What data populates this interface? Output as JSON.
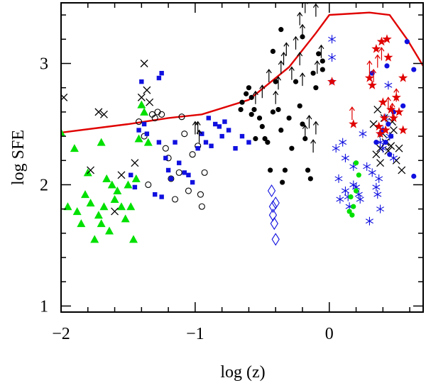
{
  "chart_data": {
    "type": "scatter",
    "title": "",
    "xlabel": "log (z)",
    "ylabel": "log SFE",
    "xlim": [
      -2.0,
      0.7
    ],
    "ylim": [
      0.95,
      3.5
    ],
    "x_ticks": [
      -2,
      -1,
      0
    ],
    "x_tick_labels": [
      "−2",
      "−1",
      "0"
    ],
    "y_ticks": [
      1,
      2,
      3
    ],
    "y_tick_labels": [
      "1",
      "2",
      "3"
    ],
    "grid": false,
    "colors": {
      "red": "#e00000",
      "blue": "#1010e0",
      "green": "#00e000",
      "black": "#000000"
    },
    "series": [
      {
        "name": "model curve",
        "style": "line",
        "color": "#e00000",
        "points": [
          [
            -2.0,
            2.43
          ],
          [
            -1.5,
            2.5
          ],
          [
            -1.2,
            2.55
          ],
          [
            -0.95,
            2.58
          ],
          [
            -0.6,
            2.7
          ],
          [
            -0.3,
            2.97
          ],
          [
            -0.1,
            3.25
          ],
          [
            0.0,
            3.4
          ],
          [
            0.3,
            3.42
          ],
          [
            0.45,
            3.4
          ],
          [
            0.58,
            3.2
          ],
          [
            0.7,
            2.98
          ]
        ]
      },
      {
        "name": "green triangles",
        "marker": "triangle",
        "color": "#00e000",
        "points": [
          [
            -2.0,
            2.43
          ],
          [
            -1.95,
            1.82
          ],
          [
            -1.9,
            2.3
          ],
          [
            -1.88,
            1.78
          ],
          [
            -1.85,
            1.68
          ],
          [
            -1.82,
            1.92
          ],
          [
            -1.8,
            2.1
          ],
          [
            -1.78,
            1.85
          ],
          [
            -1.75,
            1.55
          ],
          [
            -1.72,
            1.75
          ],
          [
            -1.7,
            2.35
          ],
          [
            -1.7,
            1.68
          ],
          [
            -1.68,
            1.82
          ],
          [
            -1.66,
            2.05
          ],
          [
            -1.64,
            1.62
          ],
          [
            -1.62,
            2.0
          ],
          [
            -1.6,
            1.88
          ],
          [
            -1.58,
            1.95
          ],
          [
            -1.55,
            1.82
          ],
          [
            -1.52,
            1.72
          ],
          [
            -1.5,
            2.0
          ],
          [
            -1.48,
            1.82
          ],
          [
            -1.46,
            1.55
          ],
          [
            -1.44,
            2.05
          ],
          [
            -1.42,
            2.38
          ],
          [
            -1.4,
            2.66
          ],
          [
            -1.38,
            2.6
          ],
          [
            -1.35,
            2.35
          ]
        ]
      },
      {
        "name": "black crosses",
        "marker": "cross",
        "color": "#000000",
        "points": [
          [
            -1.98,
            2.72
          ],
          [
            -1.78,
            2.12
          ],
          [
            -1.72,
            2.6
          ],
          [
            -1.68,
            2.58
          ],
          [
            -1.6,
            1.78
          ],
          [
            -1.55,
            2.08
          ],
          [
            -1.45,
            2.18
          ],
          [
            -1.4,
            2.72
          ],
          [
            -1.38,
            3.0
          ],
          [
            -1.36,
            2.78
          ],
          [
            -1.34,
            2.68
          ],
          [
            0.33,
            2.5
          ],
          [
            0.35,
            2.25
          ],
          [
            0.38,
            2.3
          ],
          [
            0.38,
            2.18
          ],
          [
            0.4,
            2.42
          ],
          [
            0.42,
            2.35
          ],
          [
            0.44,
            2.28
          ],
          [
            0.46,
            2.32
          ],
          [
            0.48,
            2.45
          ],
          [
            0.5,
            2.2
          ],
          [
            0.52,
            2.3
          ],
          [
            0.54,
            2.12
          ],
          [
            0.36,
            2.62
          ],
          [
            0.41,
            2.55
          ],
          [
            0.47,
            2.52
          ]
        ]
      },
      {
        "name": "black open circles",
        "marker": "open-circle",
        "color": "#000000",
        "points": [
          [
            -1.42,
            2.52
          ],
          [
            -1.38,
            2.4
          ],
          [
            -1.35,
            2.0
          ],
          [
            -1.32,
            2.58
          ],
          [
            -1.3,
            2.55
          ],
          [
            -1.28,
            2.6
          ],
          [
            -1.25,
            2.58
          ],
          [
            -1.22,
            2.3
          ],
          [
            -1.2,
            2.22
          ],
          [
            -1.18,
            2.05
          ],
          [
            -1.15,
            1.88
          ],
          [
            -1.12,
            2.1
          ],
          [
            -1.1,
            2.56
          ],
          [
            -1.08,
            2.42
          ],
          [
            -1.05,
            1.95
          ],
          [
            -1.02,
            2.25
          ],
          [
            -0.98,
            2.32
          ],
          [
            -0.96,
            1.92
          ],
          [
            -0.95,
            1.82
          ],
          [
            -0.93,
            2.1
          ]
        ]
      },
      {
        "name": "blue squares",
        "marker": "square",
        "color": "#1010e0",
        "points": [
          [
            -1.48,
            2.08
          ],
          [
            -1.45,
            1.98
          ],
          [
            -1.42,
            2.45
          ],
          [
            -1.4,
            2.85
          ],
          [
            -1.38,
            2.5
          ],
          [
            -1.36,
            2.42
          ],
          [
            -1.3,
            1.92
          ],
          [
            -1.27,
            2.35
          ],
          [
            -1.25,
            1.9
          ],
          [
            -1.22,
            2.22
          ],
          [
            -1.2,
            2.12
          ],
          [
            -1.18,
            2.05
          ],
          [
            -1.15,
            2.35
          ],
          [
            -1.12,
            2.18
          ],
          [
            -1.08,
            2.1
          ],
          [
            -1.05,
            2.08
          ],
          [
            -1.02,
            2.02
          ],
          [
            -0.98,
            2.3
          ],
          [
            -0.95,
            2.42
          ],
          [
            -0.92,
            2.35
          ],
          [
            -0.9,
            2.55
          ],
          [
            -0.88,
            2.32
          ],
          [
            -0.85,
            2.5
          ],
          [
            -0.82,
            2.48
          ],
          [
            -0.8,
            2.4
          ],
          [
            -0.78,
            2.52
          ],
          [
            -0.75,
            2.45
          ],
          [
            -0.7,
            2.3
          ],
          [
            -0.65,
            2.4
          ],
          [
            -0.6,
            2.35
          ],
          [
            -1.27,
            2.88
          ],
          [
            -1.25,
            2.92
          ]
        ]
      },
      {
        "name": "black filled circles",
        "marker": "filled-circle",
        "color": "#000000",
        "points": [
          [
            -0.65,
            2.68
          ],
          [
            -0.62,
            2.75
          ],
          [
            -0.6,
            2.8
          ],
          [
            -0.58,
            2.72
          ],
          [
            -0.56,
            2.62
          ],
          [
            -0.55,
            2.38
          ],
          [
            -0.52,
            2.55
          ],
          [
            -0.5,
            2.48
          ],
          [
            -0.48,
            2.38
          ],
          [
            -0.46,
            2.35
          ],
          [
            -0.44,
            2.12
          ],
          [
            -0.42,
            2.6
          ],
          [
            -0.4,
            2.85
          ],
          [
            -0.38,
            2.62
          ],
          [
            -0.36,
            2.45
          ],
          [
            -0.35,
            2.02
          ],
          [
            -0.33,
            2.12
          ],
          [
            -0.3,
            2.55
          ],
          [
            -0.28,
            2.3
          ],
          [
            -0.25,
            2.85
          ],
          [
            -0.22,
            2.65
          ],
          [
            -0.2,
            2.5
          ],
          [
            -0.18,
            2.38
          ],
          [
            -0.16,
            2.12
          ],
          [
            -0.14,
            2.05
          ],
          [
            -0.12,
            2.92
          ],
          [
            -0.1,
            2.8
          ],
          [
            -0.08,
            3.08
          ],
          [
            -0.05,
            2.95
          ],
          [
            -0.05,
            3.02
          ],
          [
            -0.42,
            3.1
          ],
          [
            -0.36,
            3.28
          ],
          [
            -0.2,
            3.22
          ],
          [
            -0.66,
            2.62
          ],
          [
            -0.58,
            2.58
          ]
        ]
      },
      {
        "name": "black arrows (lower limits)",
        "marker": "up-arrow",
        "color": "#000000",
        "points": [
          [
            -0.55,
            2.7
          ],
          [
            -0.5,
            2.75
          ],
          [
            -0.45,
            2.88
          ],
          [
            -0.4,
            2.7
          ],
          [
            -0.38,
            2.82
          ],
          [
            -0.36,
            2.95
          ],
          [
            -0.34,
            3.02
          ],
          [
            -0.32,
            3.1
          ],
          [
            -0.28,
            2.9
          ],
          [
            -0.25,
            3.15
          ],
          [
            -0.22,
            3.02
          ],
          [
            -0.2,
            2.85
          ],
          [
            -0.18,
            2.42
          ],
          [
            -0.15,
            2.5
          ],
          [
            -0.12,
            2.3
          ],
          [
            -0.1,
            2.45
          ],
          [
            -0.09,
            2.95
          ],
          [
            -0.06,
            3.08
          ],
          [
            -0.22,
            3.35
          ],
          [
            -0.2,
            3.25
          ],
          [
            -0.18,
            3.45
          ],
          [
            -0.1,
            3.42
          ],
          [
            -0.98,
            2.45
          ],
          [
            -0.97,
            2.38
          ],
          [
            -1.0,
            2.45
          ]
        ]
      },
      {
        "name": "blue diamonds",
        "marker": "diamond",
        "color": "#1010e0",
        "points": [
          [
            -0.43,
            1.95
          ],
          [
            -0.42,
            1.82
          ],
          [
            -0.42,
            1.75
          ],
          [
            -0.41,
            1.68
          ],
          [
            -0.4,
            1.85
          ],
          [
            -0.4,
            1.55
          ]
        ]
      },
      {
        "name": "blue asterisks",
        "marker": "asterisk",
        "color": "#1010e0",
        "points": [
          [
            0.02,
            3.05
          ],
          [
            0.02,
            3.2
          ],
          [
            0.05,
            2.3
          ],
          [
            0.07,
            2.05
          ],
          [
            0.08,
            1.88
          ],
          [
            0.1,
            2.35
          ],
          [
            0.12,
            1.95
          ],
          [
            0.12,
            2.22
          ],
          [
            0.14,
            1.9
          ],
          [
            0.15,
            1.82
          ],
          [
            0.18,
            2.15
          ],
          [
            0.18,
            2.0
          ],
          [
            0.2,
            1.98
          ],
          [
            0.22,
            1.92
          ],
          [
            0.23,
            1.88
          ],
          [
            0.25,
            2.42
          ],
          [
            0.28,
            2.15
          ],
          [
            0.3,
            1.7
          ],
          [
            0.32,
            2.1
          ],
          [
            0.35,
            1.98
          ],
          [
            0.37,
            2.05
          ],
          [
            0.38,
            2.35
          ],
          [
            0.4,
            2.45
          ],
          [
            0.42,
            2.55
          ],
          [
            0.44,
            2.82
          ],
          [
            0.36,
            1.92
          ],
          [
            0.38,
            1.8
          ],
          [
            0.4,
            2.3
          ],
          [
            0.45,
            2.4
          ],
          [
            0.48,
            2.22
          ]
        ]
      },
      {
        "name": "blue filled circles",
        "marker": "filled-circle",
        "color": "#1010e0",
        "points": [
          [
            0.02,
            2.85
          ],
          [
            0.32,
            2.92
          ],
          [
            0.35,
            2.35
          ],
          [
            0.38,
            2.42
          ],
          [
            0.4,
            2.45
          ],
          [
            0.42,
            2.35
          ],
          [
            0.43,
            2.98
          ],
          [
            0.44,
            2.5
          ],
          [
            0.45,
            2.25
          ],
          [
            0.46,
            2.4
          ],
          [
            0.48,
            2.6
          ],
          [
            0.55,
            2.65
          ],
          [
            0.58,
            3.18
          ],
          [
            0.63,
            2.95
          ],
          [
            0.63,
            2.07
          ]
        ]
      },
      {
        "name": "red stars",
        "marker": "star",
        "color": "#e00000",
        "points": [
          [
            0.02,
            2.85
          ],
          [
            0.18,
            2.5
          ],
          [
            0.3,
            2.88
          ],
          [
            0.32,
            2.82
          ],
          [
            0.35,
            3.12
          ],
          [
            0.37,
            2.48
          ],
          [
            0.38,
            2.42
          ],
          [
            0.39,
            3.18
          ],
          [
            0.4,
            2.68
          ],
          [
            0.41,
            2.55
          ],
          [
            0.42,
            2.45
          ],
          [
            0.43,
            3.2
          ],
          [
            0.44,
            3.05
          ],
          [
            0.46,
            2.62
          ],
          [
            0.48,
            2.55
          ],
          [
            0.5,
            2.72
          ],
          [
            0.52,
            2.6
          ],
          [
            0.55,
            2.88
          ],
          [
            0.55,
            2.45
          ]
        ]
      },
      {
        "name": "red arrows (lower limits)",
        "marker": "up-arrow",
        "color": "#e00000",
        "points": [
          [
            0.17,
            2.57
          ],
          [
            0.3,
            2.95
          ],
          [
            0.33,
            2.88
          ],
          [
            0.36,
            3.0
          ],
          [
            0.39,
            3.06
          ],
          [
            0.44,
            2.65
          ],
          [
            0.47,
            2.6
          ],
          [
            0.5,
            2.72
          ]
        ]
      },
      {
        "name": "green filled circles",
        "marker": "filled-circle",
        "color": "#00e000",
        "points": [
          [
            0.15,
            1.78
          ],
          [
            0.17,
            1.75
          ],
          [
            0.18,
            1.82
          ],
          [
            0.2,
            1.95
          ],
          [
            0.22,
            2.08
          ],
          [
            0.16,
            1.9
          ],
          [
            0.2,
            2.18
          ]
        ]
      }
    ]
  }
}
